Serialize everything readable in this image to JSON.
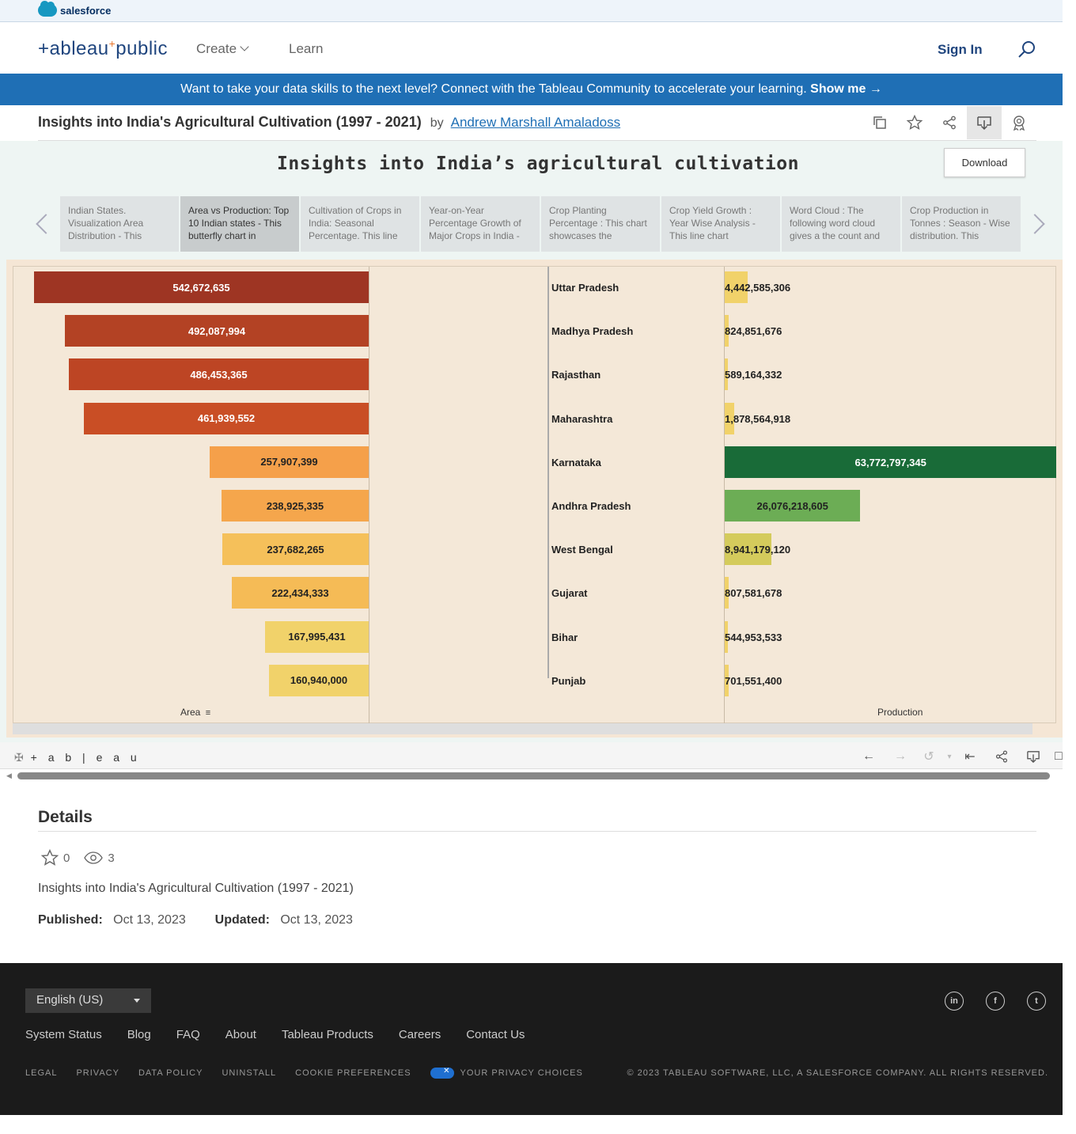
{
  "salesforce": {
    "label": "salesforce"
  },
  "nav": {
    "brand": "+ableau+public",
    "create": "Create",
    "learn": "Learn",
    "sign_in": "Sign In"
  },
  "banner": {
    "text": "Want to take your data skills to the next level? Connect with the Tableau Community to accelerate your learning.",
    "cta": "Show me →"
  },
  "viz": {
    "title": "Insights into India's Agricultural Cultivation (1997 - 2021)",
    "by": "by",
    "author": "Andrew Marshall Amaladoss"
  },
  "dashboard": {
    "title": "Insights into India’s agricultural cultivation",
    "download": "Download",
    "story_points": [
      "Indian States. Visualization Area Distribution - This",
      "Area vs Production: Top 10 Indian states - This butterfly chart in",
      "Cultivation of Crops in India: Seasonal Percentage. This line",
      "Year-on-Year Percentage Growth of Major Crops in India -",
      "Crop Planting Percentage : This chart showcases the",
      "Crop Yield Growth : Year Wise Analysis - This line chart",
      "Word Cloud : The following word cloud gives a the count and",
      "Crop Production in Tonnes : Season - Wise distribution. This"
    ],
    "active_story_point": 1
  },
  "chart_data": {
    "type": "bar",
    "categories": [
      "Uttar Pradesh",
      "Madhya Pradesh",
      "Rajasthan",
      "Maharashtra",
      "Karnataka",
      "Andhra Pradesh",
      "West Bengal",
      "Gujarat",
      "Bihar",
      "Punjab"
    ],
    "series": [
      {
        "name": "Area",
        "values": [
          542672635,
          492087994,
          486453365,
          461939552,
          257907399,
          238925335,
          237682265,
          222434333,
          167995431,
          160940000
        ],
        "labels": [
          "542,672,635",
          "492,087,994",
          "486,453,365",
          "461,939,552",
          "257,907,399",
          "238,925,335",
          "237,682,265",
          "222,434,333",
          "167,995,431",
          "160,940,000"
        ]
      },
      {
        "name": "Production",
        "values": [
          4442585306,
          824851676,
          589164332,
          1878564918,
          63772797345,
          26076218605,
          8941179120,
          807581678,
          544953533,
          701551400
        ],
        "labels": [
          "4,442,585,306",
          "824,851,676",
          "589,164,332",
          "1,878,564,918",
          "63,772,797,345",
          "26,076,218,605",
          "8,941,179,120",
          "807,581,678",
          "544,953,533",
          "701,551,400"
        ]
      }
    ],
    "xlabel_left": "Area",
    "xlabel_right": "Production",
    "colors": {
      "area": [
        "#9e3523",
        "#b34224",
        "#bd4524",
        "#c94e25",
        "#f5a04a",
        "#f5a64c",
        "#f5c05a",
        "#f5bb56",
        "#f1d26a",
        "#f1d26a"
      ],
      "production": [
        "#f1d26a",
        "#f1d26a",
        "#f1d26a",
        "#f1d26a",
        "#196b38",
        "#6cad55",
        "#d4cb5c",
        "#f1d26a",
        "#f1d26a",
        "#f1d26a"
      ]
    }
  },
  "toolbar": {
    "logo": "+ a b | e a u"
  },
  "details": {
    "heading": "Details",
    "favorites": "0",
    "views": "3",
    "description": "Insights into India's Agricultural Cultivation (1997 - 2021)",
    "published_label": "Published:",
    "published": "Oct 13, 2023",
    "updated_label": "Updated:",
    "updated": "Oct 13, 2023"
  },
  "footer": {
    "language": "English (US)",
    "links": [
      "System Status",
      "Blog",
      "FAQ",
      "About",
      "Tableau Products",
      "Careers",
      "Contact Us"
    ],
    "legal": [
      "LEGAL",
      "PRIVACY",
      "DATA POLICY",
      "UNINSTALL",
      "COOKIE PREFERENCES"
    ],
    "privacy_choices": "YOUR PRIVACY CHOICES",
    "copyright": "© 2023 TABLEAU SOFTWARE, LLC, A SALESFORCE COMPANY. ALL RIGHTS RESERVED.",
    "social": [
      "in",
      "f",
      "t"
    ]
  }
}
